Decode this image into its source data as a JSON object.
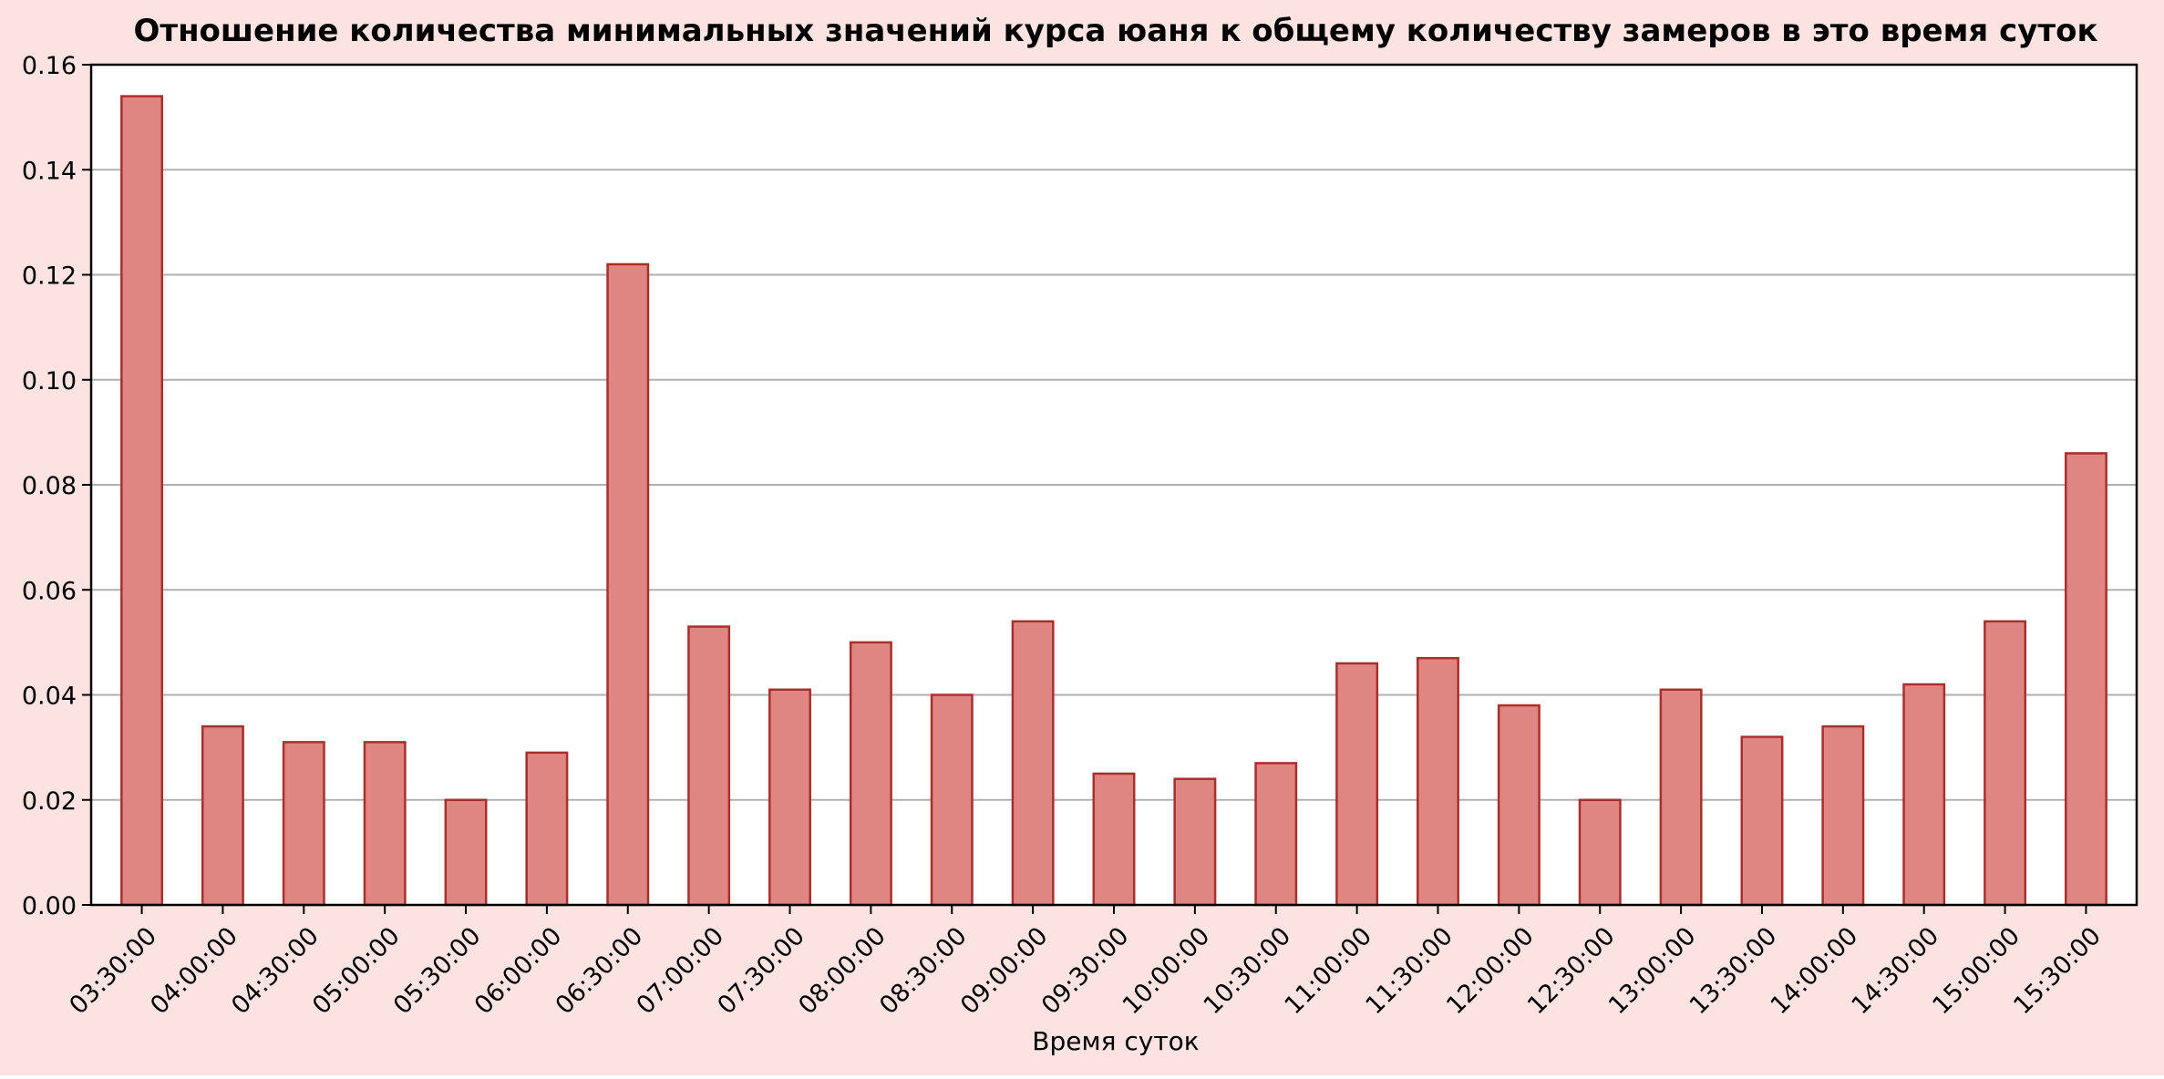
{
  "colors": {
    "figure_background": "#fae3e1",
    "plot_background": "#ffffff",
    "bar_fill": "#e08682",
    "bar_edge": "#a8302c",
    "grid": "#b0b0b0",
    "text": "#000000"
  },
  "chart_data": {
    "type": "bar",
    "title": "Отношение количества минимальных значений курса юаня к общему количеству замеров в это время суток",
    "xlabel": "Время суток",
    "ylabel": "",
    "categories": [
      "03:30:00",
      "04:00:00",
      "04:30:00",
      "05:00:00",
      "05:30:00",
      "06:00:00",
      "06:30:00",
      "07:00:00",
      "07:30:00",
      "08:00:00",
      "08:30:00",
      "09:00:00",
      "09:30:00",
      "10:00:00",
      "10:30:00",
      "11:00:00",
      "11:30:00",
      "12:00:00",
      "12:30:00",
      "13:00:00",
      "13:30:00",
      "14:00:00",
      "14:30:00",
      "15:00:00",
      "15:30:00"
    ],
    "values": [
      0.154,
      0.034,
      0.031,
      0.031,
      0.02,
      0.029,
      0.122,
      0.053,
      0.041,
      0.05,
      0.04,
      0.054,
      0.025,
      0.024,
      0.027,
      0.046,
      0.047,
      0.038,
      0.02,
      0.041,
      0.032,
      0.034,
      0.042,
      0.054,
      0.086
    ],
    "ylim": [
      0,
      0.16
    ],
    "yticks": [
      "0.00",
      "0.02",
      "0.04",
      "0.06",
      "0.08",
      "0.10",
      "0.12",
      "0.14",
      "0.16"
    ],
    "grid": "horizontal",
    "legend": "none",
    "xtick_rotation": "45°"
  }
}
